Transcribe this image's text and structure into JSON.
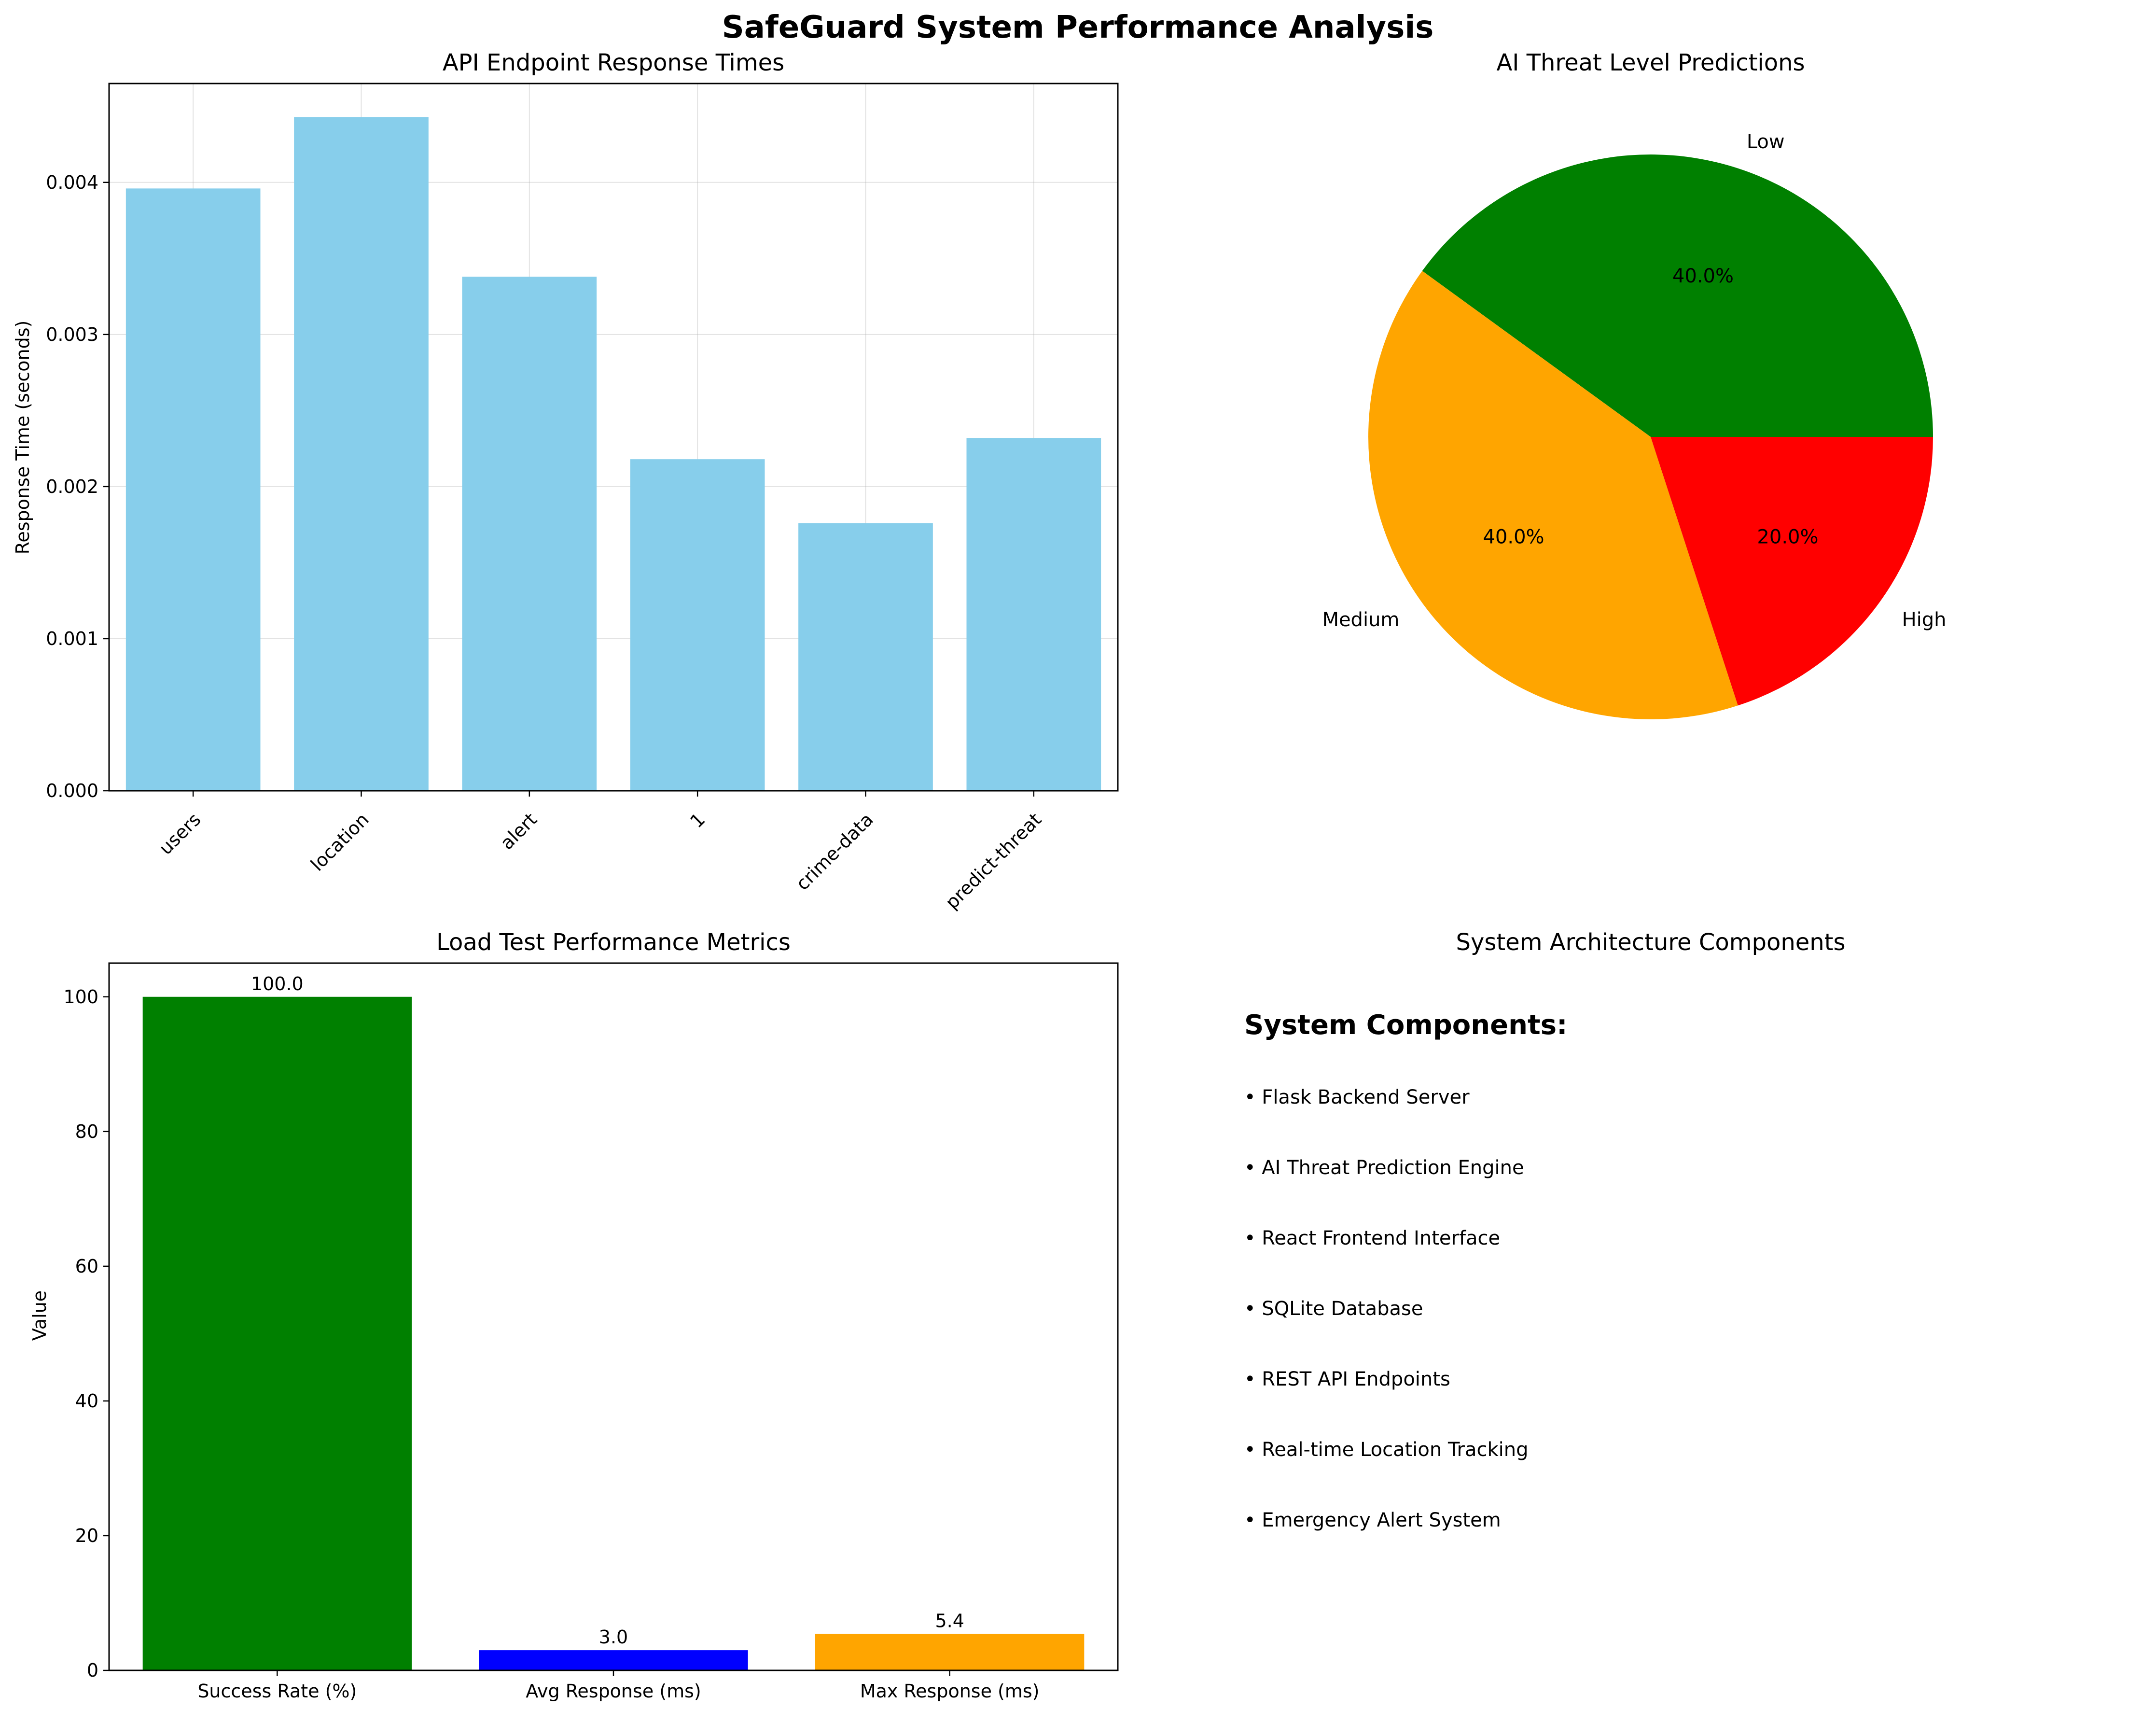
{
  "figure_title": "SafeGuard System Performance Analysis",
  "chart_data": [
    {
      "type": "bar",
      "title": "API Endpoint Response Times",
      "xlabel": "",
      "ylabel": "Response Time (seconds)",
      "categories": [
        "users",
        "location",
        "alert",
        "1",
        "crime-data",
        "predict-threat"
      ],
      "values": [
        0.00396,
        0.00443,
        0.00338,
        0.00218,
        0.00176,
        0.00232
      ],
      "ylim": [
        0,
        0.00465
      ],
      "yticks": [
        0.0,
        0.001,
        0.002,
        0.003,
        0.004
      ],
      "ytick_labels": [
        "0.000",
        "0.001",
        "0.002",
        "0.003",
        "0.004"
      ],
      "color": "#87CEEB",
      "grid": true
    },
    {
      "type": "pie",
      "title": "AI Threat Level Predictions",
      "labels": [
        "Low",
        "Medium",
        "High"
      ],
      "values": [
        40.0,
        40.0,
        20.0
      ],
      "pct_labels": [
        "40.0%",
        "40.0%",
        "20.0%"
      ],
      "colors": [
        "#008000",
        "#FFA500",
        "#FF0000"
      ]
    },
    {
      "type": "bar",
      "title": "Load Test Performance Metrics",
      "xlabel": "",
      "ylabel": "Value",
      "categories": [
        "Success Rate (%)",
        "Avg Response (ms)",
        "Max Response (ms)"
      ],
      "values": [
        100.0,
        3.0,
        5.4
      ],
      "value_labels": [
        "100.0",
        "3.0",
        "5.4"
      ],
      "ylim": [
        0,
        105
      ],
      "yticks": [
        0,
        20,
        40,
        60,
        80,
        100
      ],
      "ytick_labels": [
        "0",
        "20",
        "40",
        "60",
        "80",
        "100"
      ],
      "colors": [
        "#008000",
        "#0000FF",
        "#FFA500"
      ],
      "grid": false
    }
  ],
  "components_panel": {
    "title": "System Architecture Components",
    "heading": "System Components:",
    "items": [
      "• Flask Backend Server",
      "• AI Threat Prediction Engine",
      "• React Frontend Interface",
      "• SQLite Database",
      "• REST API Endpoints",
      "• Real-time Location Tracking",
      "• Emergency Alert System"
    ]
  }
}
